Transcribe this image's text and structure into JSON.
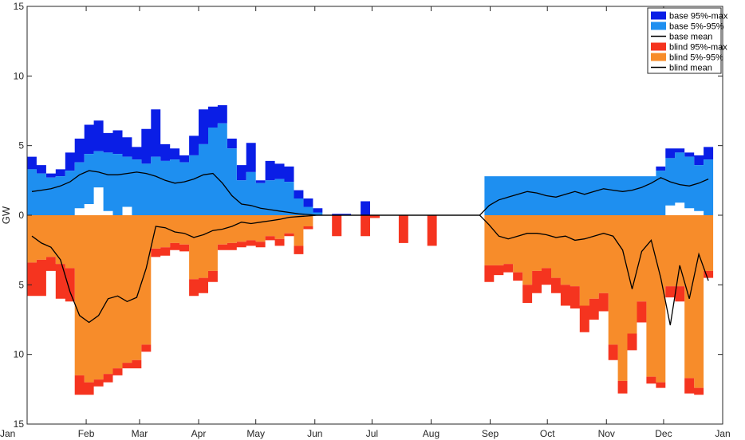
{
  "chart_data": {
    "type": "area",
    "ylabel": "GW",
    "xlim": [
      "Jan",
      "Jan"
    ],
    "y_ticks": [
      15,
      10,
      5,
      0,
      5,
      10,
      15
    ],
    "x_ticks": [
      "Jan",
      "Feb",
      "Mar",
      "Apr",
      "May",
      "Jun",
      "Jul",
      "Aug",
      "Sep",
      "Oct",
      "Nov",
      "Dec",
      "Jan"
    ],
    "ylim": [
      -15,
      15
    ],
    "grid": false,
    "legend_position": "top-right",
    "legend": [
      {
        "label": "base 95%-max",
        "color": "#0a1ee6",
        "kind": "patch"
      },
      {
        "label": "base 5%-95%",
        "color": "#1e8ff0",
        "kind": "patch"
      },
      {
        "label": "base mean",
        "color": "#000000",
        "kind": "line"
      },
      {
        "label": "blind 95%-max",
        "color": "#f5341f",
        "kind": "patch"
      },
      {
        "label": "blind 5%-95%",
        "color": "#f78c2a",
        "kind": "patch"
      },
      {
        "label": "blind mean",
        "color": "#000000",
        "kind": "line"
      }
    ],
    "x_day_of_year": [
      0,
      5,
      10,
      15,
      20,
      25,
      30,
      35,
      40,
      45,
      50,
      55,
      60,
      65,
      70,
      75,
      80,
      85,
      90,
      95,
      100,
      105,
      110,
      115,
      120,
      125,
      130,
      135,
      140,
      145,
      150,
      155,
      160,
      165,
      170,
      175,
      180,
      185,
      190,
      195,
      200,
      205,
      210,
      215,
      220,
      225,
      230,
      235,
      240,
      245,
      250,
      255,
      260,
      265,
      270,
      275,
      280,
      285,
      290,
      295,
      300,
      305,
      310,
      315,
      320,
      325,
      330,
      335,
      340,
      345,
      350,
      355
    ],
    "base_max": [
      4.2,
      3.6,
      3.0,
      3.3,
      4.5,
      5.5,
      6.5,
      6.8,
      5.9,
      6.1,
      5.6,
      4.9,
      6.2,
      7.6,
      5.1,
      4.8,
      4.3,
      5.7,
      7.6,
      7.8,
      7.9,
      5.5,
      3.6,
      5.2,
      2.5,
      3.9,
      3.7,
      3.5,
      1.8,
      1.2,
      0.5,
      0.0,
      0.1,
      0.1,
      0.0,
      1.0,
      0.0,
      0.0,
      0.0,
      0.0,
      0.0,
      0.0,
      0.0,
      0.0,
      0.0,
      0.0,
      0.0,
      0.0,
      2.8,
      2.8,
      2.8,
      2.8,
      2.8,
      2.8,
      2.8,
      2.8,
      2.8,
      2.8,
      2.8,
      2.8,
      2.8,
      2.8,
      2.8,
      2.8,
      2.8,
      2.8,
      3.5,
      4.8,
      4.8,
      4.5,
      4.3,
      4.9
    ],
    "base_p95": [
      3.3,
      3.0,
      2.7,
      2.8,
      3.2,
      3.8,
      4.4,
      4.6,
      4.5,
      4.4,
      4.2,
      4.0,
      3.7,
      4.2,
      3.9,
      4.0,
      3.8,
      4.3,
      5.1,
      6.3,
      6.6,
      4.8,
      2.5,
      3.1,
      2.3,
      2.5,
      2.6,
      2.4,
      1.2,
      0.6,
      0.2,
      0.0,
      0.0,
      0.0,
      0.0,
      0.0,
      0.0,
      0.0,
      0.0,
      0.0,
      0.0,
      0.0,
      0.0,
      0.0,
      0.0,
      0.0,
      0.0,
      0.0,
      2.8,
      2.8,
      2.8,
      2.8,
      2.8,
      2.8,
      2.8,
      2.8,
      2.8,
      2.8,
      2.8,
      2.8,
      2.8,
      2.8,
      2.8,
      2.8,
      2.8,
      2.8,
      3.2,
      4.1,
      4.5,
      4.2,
      3.6,
      4.0
    ],
    "base_p05": [
      0.0,
      0.0,
      0.0,
      0.0,
      0.0,
      0.5,
      0.8,
      2.0,
      0.3,
      0.0,
      0.6,
      0.0,
      0.0,
      0.0,
      0.0,
      0.0,
      0.0,
      0.0,
      0.0,
      0.0,
      0.0,
      0.0,
      0.0,
      0.0,
      0.0,
      0.0,
      0.0,
      0.0,
      0.0,
      0.0,
      0.0,
      0.0,
      0.0,
      0.0,
      0.0,
      0.0,
      0.0,
      0.0,
      0.0,
      0.0,
      0.0,
      0.0,
      0.0,
      0.0,
      0.0,
      0.0,
      0.0,
      0.0,
      0.0,
      0.0,
      0.0,
      0.0,
      0.0,
      0.0,
      0.0,
      0.0,
      0.0,
      0.0,
      0.0,
      0.0,
      0.0,
      0.0,
      0.0,
      0.0,
      0.0,
      0.0,
      0.0,
      0.7,
      0.9,
      0.5,
      0.3,
      0.0
    ],
    "base_mean": [
      1.7,
      1.8,
      1.9,
      2.1,
      2.4,
      2.9,
      3.2,
      3.1,
      2.9,
      2.9,
      3.0,
      3.1,
      3.0,
      2.8,
      2.5,
      2.3,
      2.4,
      2.6,
      2.9,
      3.0,
      2.3,
      1.4,
      0.8,
      0.7,
      0.5,
      0.4,
      0.3,
      0.2,
      0.1,
      0.05,
      0.0,
      0.0,
      0.0,
      0.0,
      0.0,
      0.0,
      0.0,
      0.0,
      0.0,
      0.0,
      0.0,
      0.0,
      0.0,
      0.0,
      0.0,
      0.0,
      0.0,
      0.0,
      0.7,
      1.1,
      1.3,
      1.5,
      1.7,
      1.6,
      1.4,
      1.3,
      1.5,
      1.7,
      1.5,
      1.7,
      1.9,
      1.8,
      1.7,
      1.8,
      2.0,
      2.3,
      2.7,
      2.4,
      2.2,
      2.1,
      2.3,
      2.6
    ],
    "blind_max": [
      5.8,
      5.8,
      4.0,
      6.0,
      6.2,
      12.9,
      12.9,
      12.3,
      12.0,
      11.5,
      11.0,
      11.0,
      9.8,
      3.0,
      2.9,
      2.5,
      2.6,
      5.8,
      5.6,
      4.8,
      2.5,
      2.5,
      2.3,
      2.2,
      2.3,
      1.8,
      2.2,
      1.5,
      2.8,
      1.0,
      0.0,
      0.0,
      1.5,
      0.0,
      0.0,
      1.5,
      0.2,
      0.0,
      0.0,
      2.0,
      0.0,
      0.0,
      2.2,
      0.0,
      0.0,
      0.0,
      0.0,
      0.0,
      4.8,
      4.3,
      4.1,
      4.7,
      6.3,
      5.6,
      5.0,
      5.6,
      6.5,
      6.7,
      8.4,
      7.5,
      6.9,
      10.4,
      12.8,
      9.7,
      7.7,
      12.1,
      12.4,
      5.9,
      6.2,
      12.8,
      12.9,
      4.5
    ],
    "blind_p95": [
      3.4,
      3.2,
      3.0,
      3.5,
      3.8,
      11.5,
      12.0,
      11.8,
      11.4,
      11.0,
      10.6,
      10.4,
      9.3,
      2.4,
      2.3,
      2.0,
      2.1,
      4.6,
      4.5,
      4.0,
      2.1,
      2.0,
      1.9,
      1.8,
      1.9,
      1.5,
      1.7,
      1.3,
      2.2,
      0.8,
      0.0,
      0.0,
      0.0,
      0.0,
      0.0,
      0.0,
      0.0,
      0.0,
      0.0,
      0.0,
      0.0,
      0.0,
      0.0,
      0.0,
      0.0,
      0.0,
      0.0,
      0.0,
      3.6,
      3.6,
      3.5,
      4.1,
      5.0,
      4.0,
      3.8,
      4.5,
      5.0,
      5.1,
      6.5,
      6.0,
      5.6,
      9.3,
      11.9,
      8.5,
      6.2,
      11.6,
      12.0,
      5.1,
      5.1,
      11.7,
      12.4,
      4.0
    ],
    "blind_mean": [
      1.5,
      2.0,
      2.3,
      3.2,
      5.5,
      7.2,
      7.7,
      7.2,
      6.0,
      5.8,
      6.2,
      5.9,
      3.8,
      0.8,
      0.9,
      1.2,
      1.3,
      1.6,
      1.4,
      1.1,
      1.0,
      0.8,
      0.5,
      0.6,
      0.5,
      0.4,
      0.3,
      0.15,
      0.1,
      0.05,
      0.0,
      0.0,
      0.0,
      0.0,
      0.0,
      0.0,
      0.0,
      0.0,
      0.0,
      0.0,
      0.0,
      0.0,
      0.0,
      0.0,
      0.0,
      0.0,
      0.0,
      0.0,
      0.7,
      1.5,
      1.7,
      1.5,
      1.3,
      1.3,
      1.4,
      1.6,
      1.5,
      1.8,
      1.7,
      1.5,
      1.3,
      1.5,
      2.5,
      5.3,
      2.6,
      1.8,
      4.5,
      7.9,
      3.6,
      6.0,
      2.8,
      4.7
    ]
  }
}
